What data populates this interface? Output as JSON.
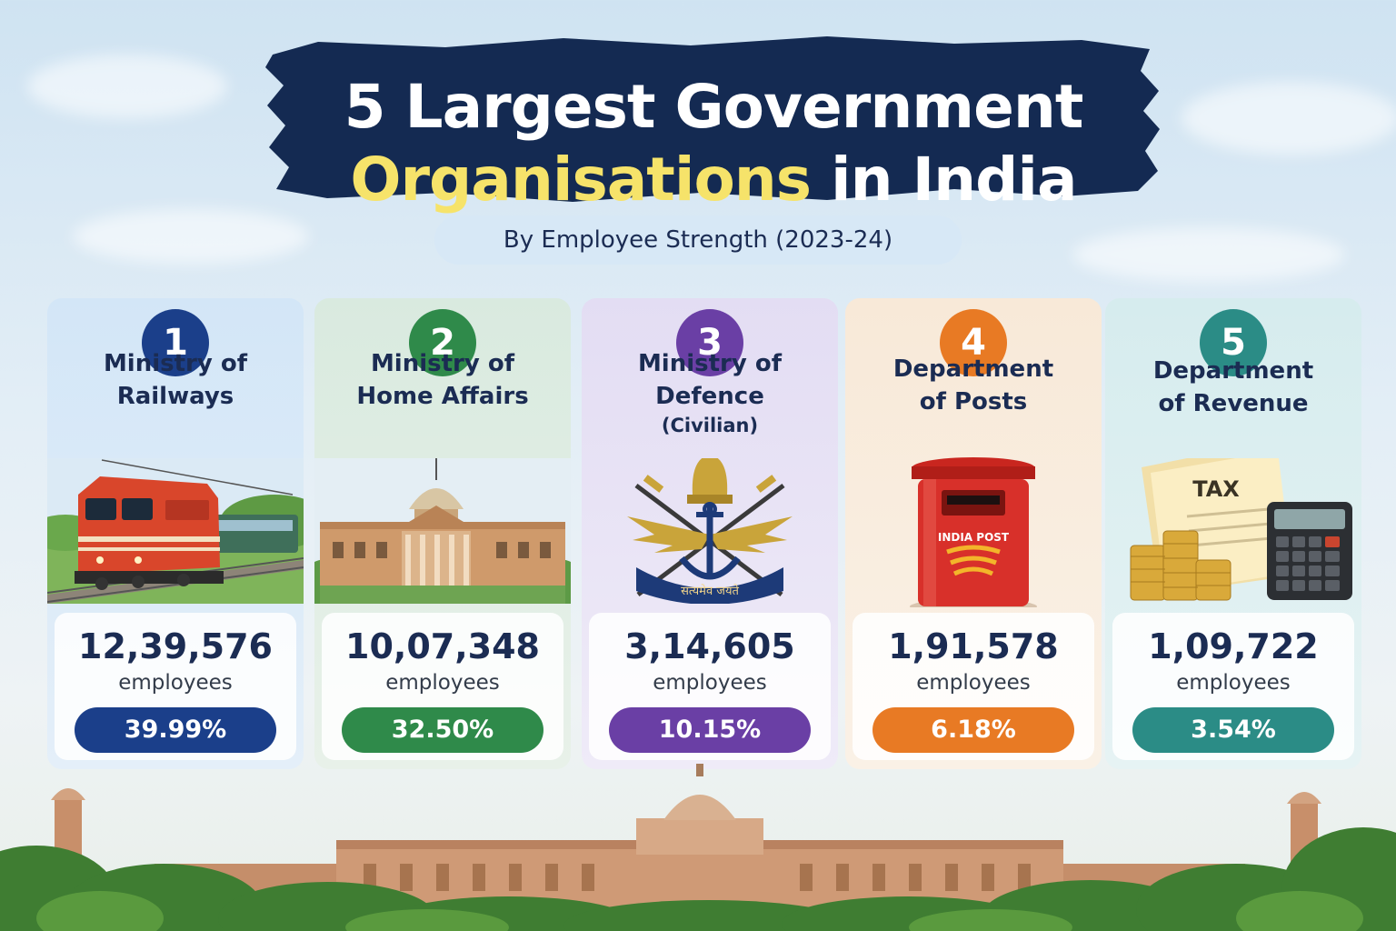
{
  "title": {
    "line1": "5 Largest Government",
    "highlight": "Organisations",
    "line2_rest": " in India"
  },
  "subtitle": "By Employee Strength (2023-24)",
  "colors": {
    "navy": "#1b3f8a",
    "green": "#2f8a4a",
    "purple": "#6a3fa5",
    "orange": "#e87a24",
    "teal": "#2b8c86",
    "title_bg": "#142a52",
    "title_highlight": "#f6e36a"
  },
  "cards": [
    {
      "rank": "1",
      "name_line1": "Ministry of",
      "name_line2": "Railways",
      "name_sub": "",
      "value": "12,39,576",
      "unit": "employees",
      "percent": "39.99%",
      "share": 39.99,
      "color": "#1b3f8a",
      "icon": "train-icon"
    },
    {
      "rank": "2",
      "name_line1": "Ministry of",
      "name_line2": "Home Affairs",
      "name_sub": "",
      "value": "10,07,348",
      "unit": "employees",
      "percent": "32.50%",
      "share": 32.5,
      "color": "#2f8a4a",
      "icon": "government-building-icon"
    },
    {
      "rank": "3",
      "name_line1": "Ministry of",
      "name_line2": "Defence",
      "name_sub": "(Civilian)",
      "value": "3,14,605",
      "unit": "employees",
      "percent": "10.15%",
      "share": 10.15,
      "color": "#6a3fa5",
      "icon": "defence-emblem-icon",
      "motto": "सत्यमेव जयते"
    },
    {
      "rank": "4",
      "name_line1": "Department",
      "name_line2": "of Posts",
      "name_sub": "",
      "value": "1,91,578",
      "unit": "employees",
      "percent": "6.18%",
      "share": 6.18,
      "color": "#e87a24",
      "icon": "post-box-icon",
      "label": "INDIA POST"
    },
    {
      "rank": "5",
      "name_line1": "Department",
      "name_line2": "of Revenue",
      "name_sub": "",
      "value": "1,09,722",
      "unit": "employees",
      "percent": "3.54%",
      "share": 3.54,
      "color": "#2b8c86",
      "icon": "tax-calculator-icon",
      "label": "TAX"
    }
  ]
}
